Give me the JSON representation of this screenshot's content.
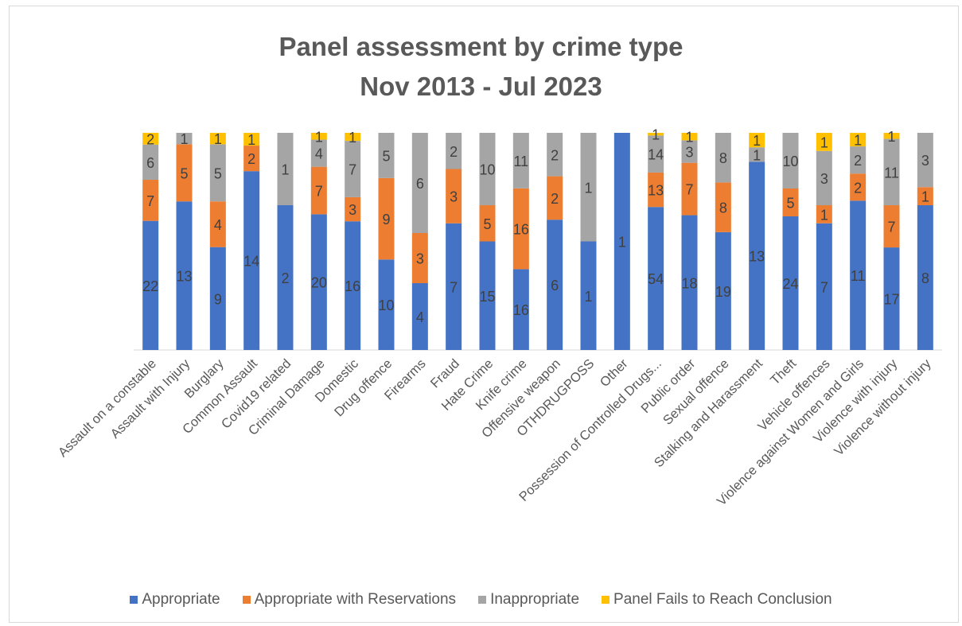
{
  "chart_data": {
    "type": "bar",
    "stacked": "100%",
    "title": "Panel assessment by crime type\nNov 2013 - Jul 2023",
    "title_lines": [
      "Panel assessment by crime type",
      "Nov 2013 - Jul 2023"
    ],
    "categories": [
      "Assault on a constable",
      "Assault with Injury",
      "Burglary",
      "Common Assault",
      "Covid19 related",
      "Criminal Damage",
      "Domestic",
      "Drug offence",
      "Firearms",
      "Fraud",
      "Hate Crime",
      "Knife crime",
      "Offensive weapon",
      "OTHDRUGPOSS",
      "Other",
      "Possession of Controlled Drugs...",
      "Public order",
      "Sexual offence",
      "Stalking and Harassment",
      "Theft",
      "Vehicle offences",
      "Violence against Women and Girls",
      "Violence with injury",
      "Violence without injury"
    ],
    "series": [
      {
        "name": "Appropriate",
        "color": "#4472C4",
        "values": [
          22,
          13,
          9,
          14,
          2,
          20,
          16,
          10,
          4,
          7,
          15,
          16,
          6,
          1,
          1,
          54,
          18,
          19,
          13,
          24,
          7,
          11,
          17,
          8
        ]
      },
      {
        "name": "Appropriate with Reservations",
        "color": "#ED7D31",
        "values": [
          7,
          5,
          4,
          2,
          0,
          7,
          3,
          9,
          3,
          3,
          5,
          16,
          2,
          0,
          0,
          13,
          7,
          8,
          0,
          5,
          1,
          2,
          7,
          1
        ]
      },
      {
        "name": "Inappropriate",
        "color": "#A5A5A5",
        "values": [
          6,
          1,
          5,
          0,
          1,
          4,
          7,
          5,
          6,
          2,
          10,
          11,
          2,
          1,
          0,
          14,
          3,
          8,
          1,
          10,
          3,
          2,
          11,
          3
        ]
      },
      {
        "name": "Panel Fails to Reach Conclusion",
        "color": "#FFC000",
        "values": [
          2,
          0,
          1,
          1,
          0,
          1,
          1,
          0,
          0,
          0,
          0,
          0,
          0,
          0,
          0,
          1,
          1,
          0,
          1,
          0,
          1,
          1,
          1,
          0
        ]
      }
    ],
    "ylim": [
      0,
      1
    ],
    "grid": false,
    "legend_position": "bottom"
  }
}
